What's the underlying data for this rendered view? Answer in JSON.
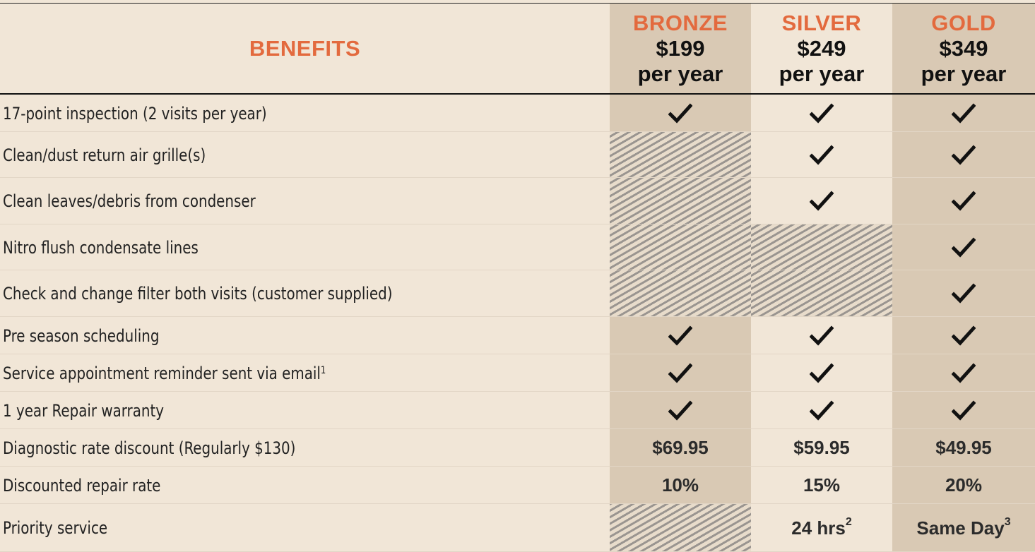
{
  "header": {
    "benefits_label": "BENEFITS",
    "plans": [
      {
        "name": "BRONZE",
        "price": "$199",
        "period": "per year"
      },
      {
        "name": "SILVER",
        "price": "$249",
        "period": "per year"
      },
      {
        "name": "GOLD",
        "price": "$349",
        "period": "per year"
      }
    ]
  },
  "colors": {
    "accent": "#e36a3e",
    "shaded_column": "#d9c9b4",
    "background": "#f1e6d7"
  },
  "rows": [
    {
      "label": "17-point inspection (2 visits per year)",
      "cells": [
        "check",
        "check",
        "check"
      ]
    },
    {
      "label": "Clean/dust return air grille(s)",
      "cells": [
        "none",
        "check",
        "check"
      ]
    },
    {
      "label": "Clean leaves/debris from condenser",
      "cells": [
        "none",
        "check",
        "check"
      ]
    },
    {
      "label": "Nitro flush condensate lines",
      "cells": [
        "none",
        "none",
        "check"
      ]
    },
    {
      "label": "Check and change filter both visits (customer supplied)",
      "cells": [
        "none",
        "none",
        "check"
      ]
    },
    {
      "label": "Pre season scheduling",
      "cells": [
        "check",
        "check",
        "check"
      ]
    },
    {
      "label": "Service appointment reminder sent via email",
      "footnote": "1",
      "cells": [
        "check",
        "check",
        "check"
      ]
    },
    {
      "label": "1 year Repair warranty",
      "cells": [
        "check",
        "check",
        "check"
      ]
    },
    {
      "label": "Diagnostic rate discount (Regularly $130)",
      "cells": [
        "$69.95",
        "$59.95",
        "$49.95"
      ]
    },
    {
      "label": "Discounted repair rate",
      "cells": [
        "10%",
        "15%",
        "20%"
      ]
    },
    {
      "label": "Priority service",
      "cells": [
        "none",
        {
          "text": "24 hrs",
          "sup": "2"
        },
        {
          "text": "Same Day",
          "sup": "3"
        }
      ]
    }
  ]
}
